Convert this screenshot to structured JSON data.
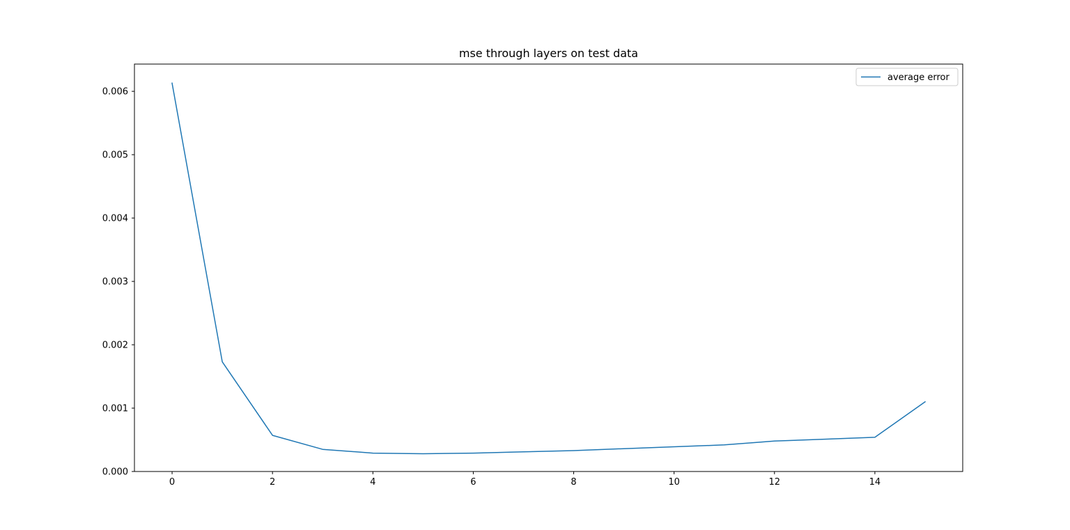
{
  "chart_data": {
    "type": "line",
    "title": "mse through layers on test data",
    "xlabel": "",
    "ylabel": "",
    "xlim": [
      -0.75,
      15.75
    ],
    "ylim": [
      0,
      0.00643
    ],
    "xticks": [
      0,
      2,
      4,
      6,
      8,
      10,
      12,
      14
    ],
    "xtick_labels": [
      "0",
      "2",
      "4",
      "6",
      "8",
      "10",
      "12",
      "14"
    ],
    "yticks": [
      0,
      0.001,
      0.002,
      0.003,
      0.004,
      0.005,
      0.006
    ],
    "ytick_labels": [
      "0.000",
      "0.001",
      "0.002",
      "0.003",
      "0.004",
      "0.005",
      "0.006"
    ],
    "grid": false,
    "legend_position": "top-right",
    "series": [
      {
        "name": "average error",
        "color": "#1f77b4",
        "x": [
          0,
          1,
          2,
          3,
          4,
          5,
          6,
          7,
          8,
          9,
          10,
          11,
          12,
          13,
          14,
          15
        ],
        "y": [
          0.00613,
          0.00173,
          0.00057,
          0.00035,
          0.00029,
          0.00028,
          0.00029,
          0.00031,
          0.00033,
          0.00036,
          0.00039,
          0.00042,
          0.00048,
          0.00051,
          0.00054,
          0.0011
        ]
      }
    ]
  }
}
